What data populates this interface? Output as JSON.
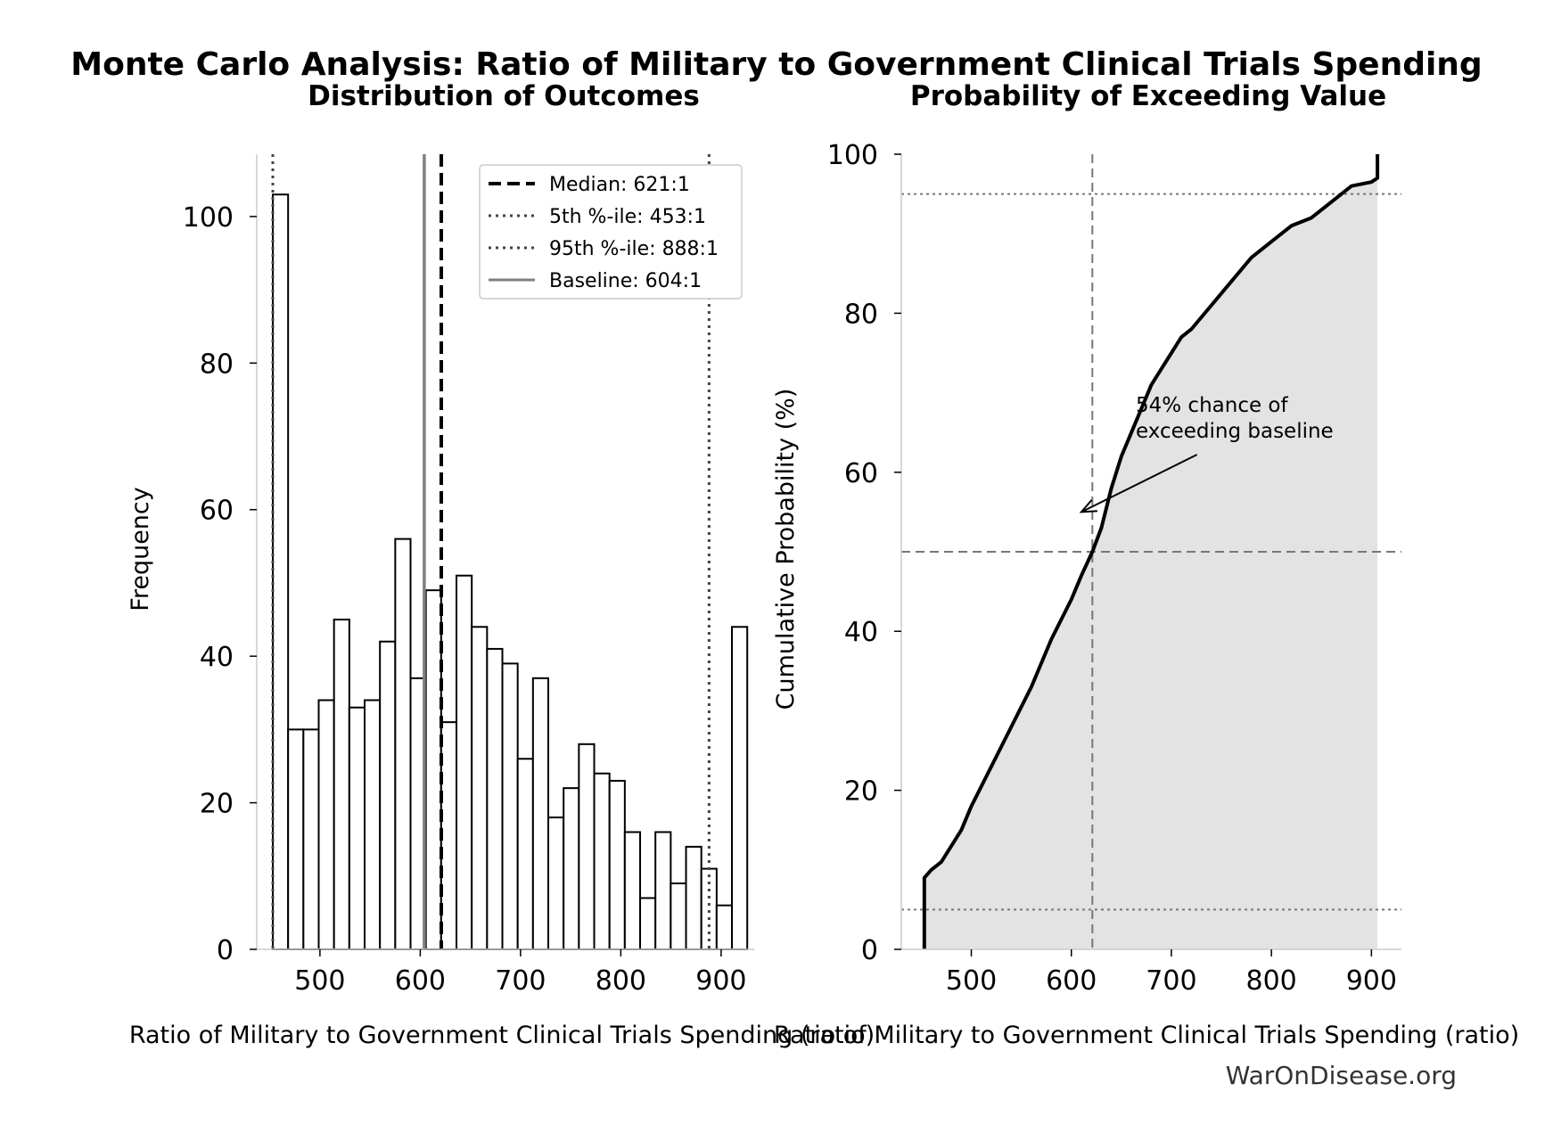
{
  "figure": {
    "title": "Monte Carlo Analysis: Ratio of Military to Government Clinical Trials Spending",
    "credit": "WarOnDisease.org"
  },
  "chart_data": [
    {
      "type": "bar",
      "subtype": "histogram",
      "title": "Distribution of Outcomes",
      "xlabel": "Ratio of Military to Government Clinical Trials Spending (ratio)",
      "ylabel": "Frequency",
      "xlim": [
        437,
        933
      ],
      "ylim": [
        0,
        108.5
      ],
      "xticks": [
        500,
        600,
        700,
        800,
        900
      ],
      "yticks": [
        0,
        20,
        40,
        60,
        80,
        100
      ],
      "bin_start": 453,
      "bin_width": 15.26,
      "values": [
        103,
        30,
        30,
        34,
        45,
        33,
        34,
        42,
        56,
        37,
        49,
        31,
        51,
        44,
        41,
        39,
        26,
        37,
        18,
        22,
        28,
        24,
        23,
        16,
        7,
        16,
        9,
        14,
        11,
        6,
        44
      ],
      "reference_lines": [
        {
          "label": "Median: 621:1",
          "x": 621,
          "style": "dashed",
          "color": "#000000"
        },
        {
          "label": "5th %-ile: 453:1",
          "x": 453,
          "style": "dotted",
          "color": "#444444"
        },
        {
          "label": "95th %-ile: 888:1",
          "x": 888,
          "style": "dotted",
          "color": "#444444"
        },
        {
          "label": "Baseline: 604:1",
          "x": 604,
          "style": "solid",
          "color": "#808080"
        }
      ],
      "legend": "top-right",
      "grid": false
    },
    {
      "type": "line",
      "subtype": "cdf",
      "title": "Probability of Exceeding Value",
      "xlabel": "Ratio of Military to Government Clinical Trials Spending (ratio)",
      "ylabel": "Cumulative Probability (%)",
      "xlim": [
        430,
        930
      ],
      "ylim": [
        0,
        100
      ],
      "xticks": [
        500,
        600,
        700,
        800,
        900
      ],
      "yticks": [
        0,
        20,
        40,
        60,
        80,
        100
      ],
      "x": [
        453,
        453,
        460,
        470,
        480,
        490,
        500,
        520,
        540,
        560,
        580,
        600,
        610,
        621,
        630,
        640,
        650,
        660,
        670,
        680,
        690,
        700,
        710,
        720,
        740,
        760,
        780,
        800,
        820,
        840,
        860,
        880,
        900,
        906,
        906
      ],
      "y": [
        0,
        9,
        10,
        11,
        13,
        15,
        18,
        23,
        28,
        33,
        39,
        44,
        47,
        50,
        53,
        58,
        62,
        65,
        68,
        71,
        73,
        75,
        77,
        78,
        81,
        84,
        87,
        89,
        91,
        92,
        94,
        96,
        96.5,
        97,
        100
      ],
      "horizontal_lines": [
        5,
        50,
        95
      ],
      "vertical_line": 621,
      "annotation": {
        "text_line1": "54% chance of",
        "text_line2": "exceeding baseline",
        "arrow_to": [
          610,
          55
        ],
        "text_at": [
          665,
          68
        ]
      },
      "fill": "#e3e3e3",
      "grid": false
    }
  ]
}
